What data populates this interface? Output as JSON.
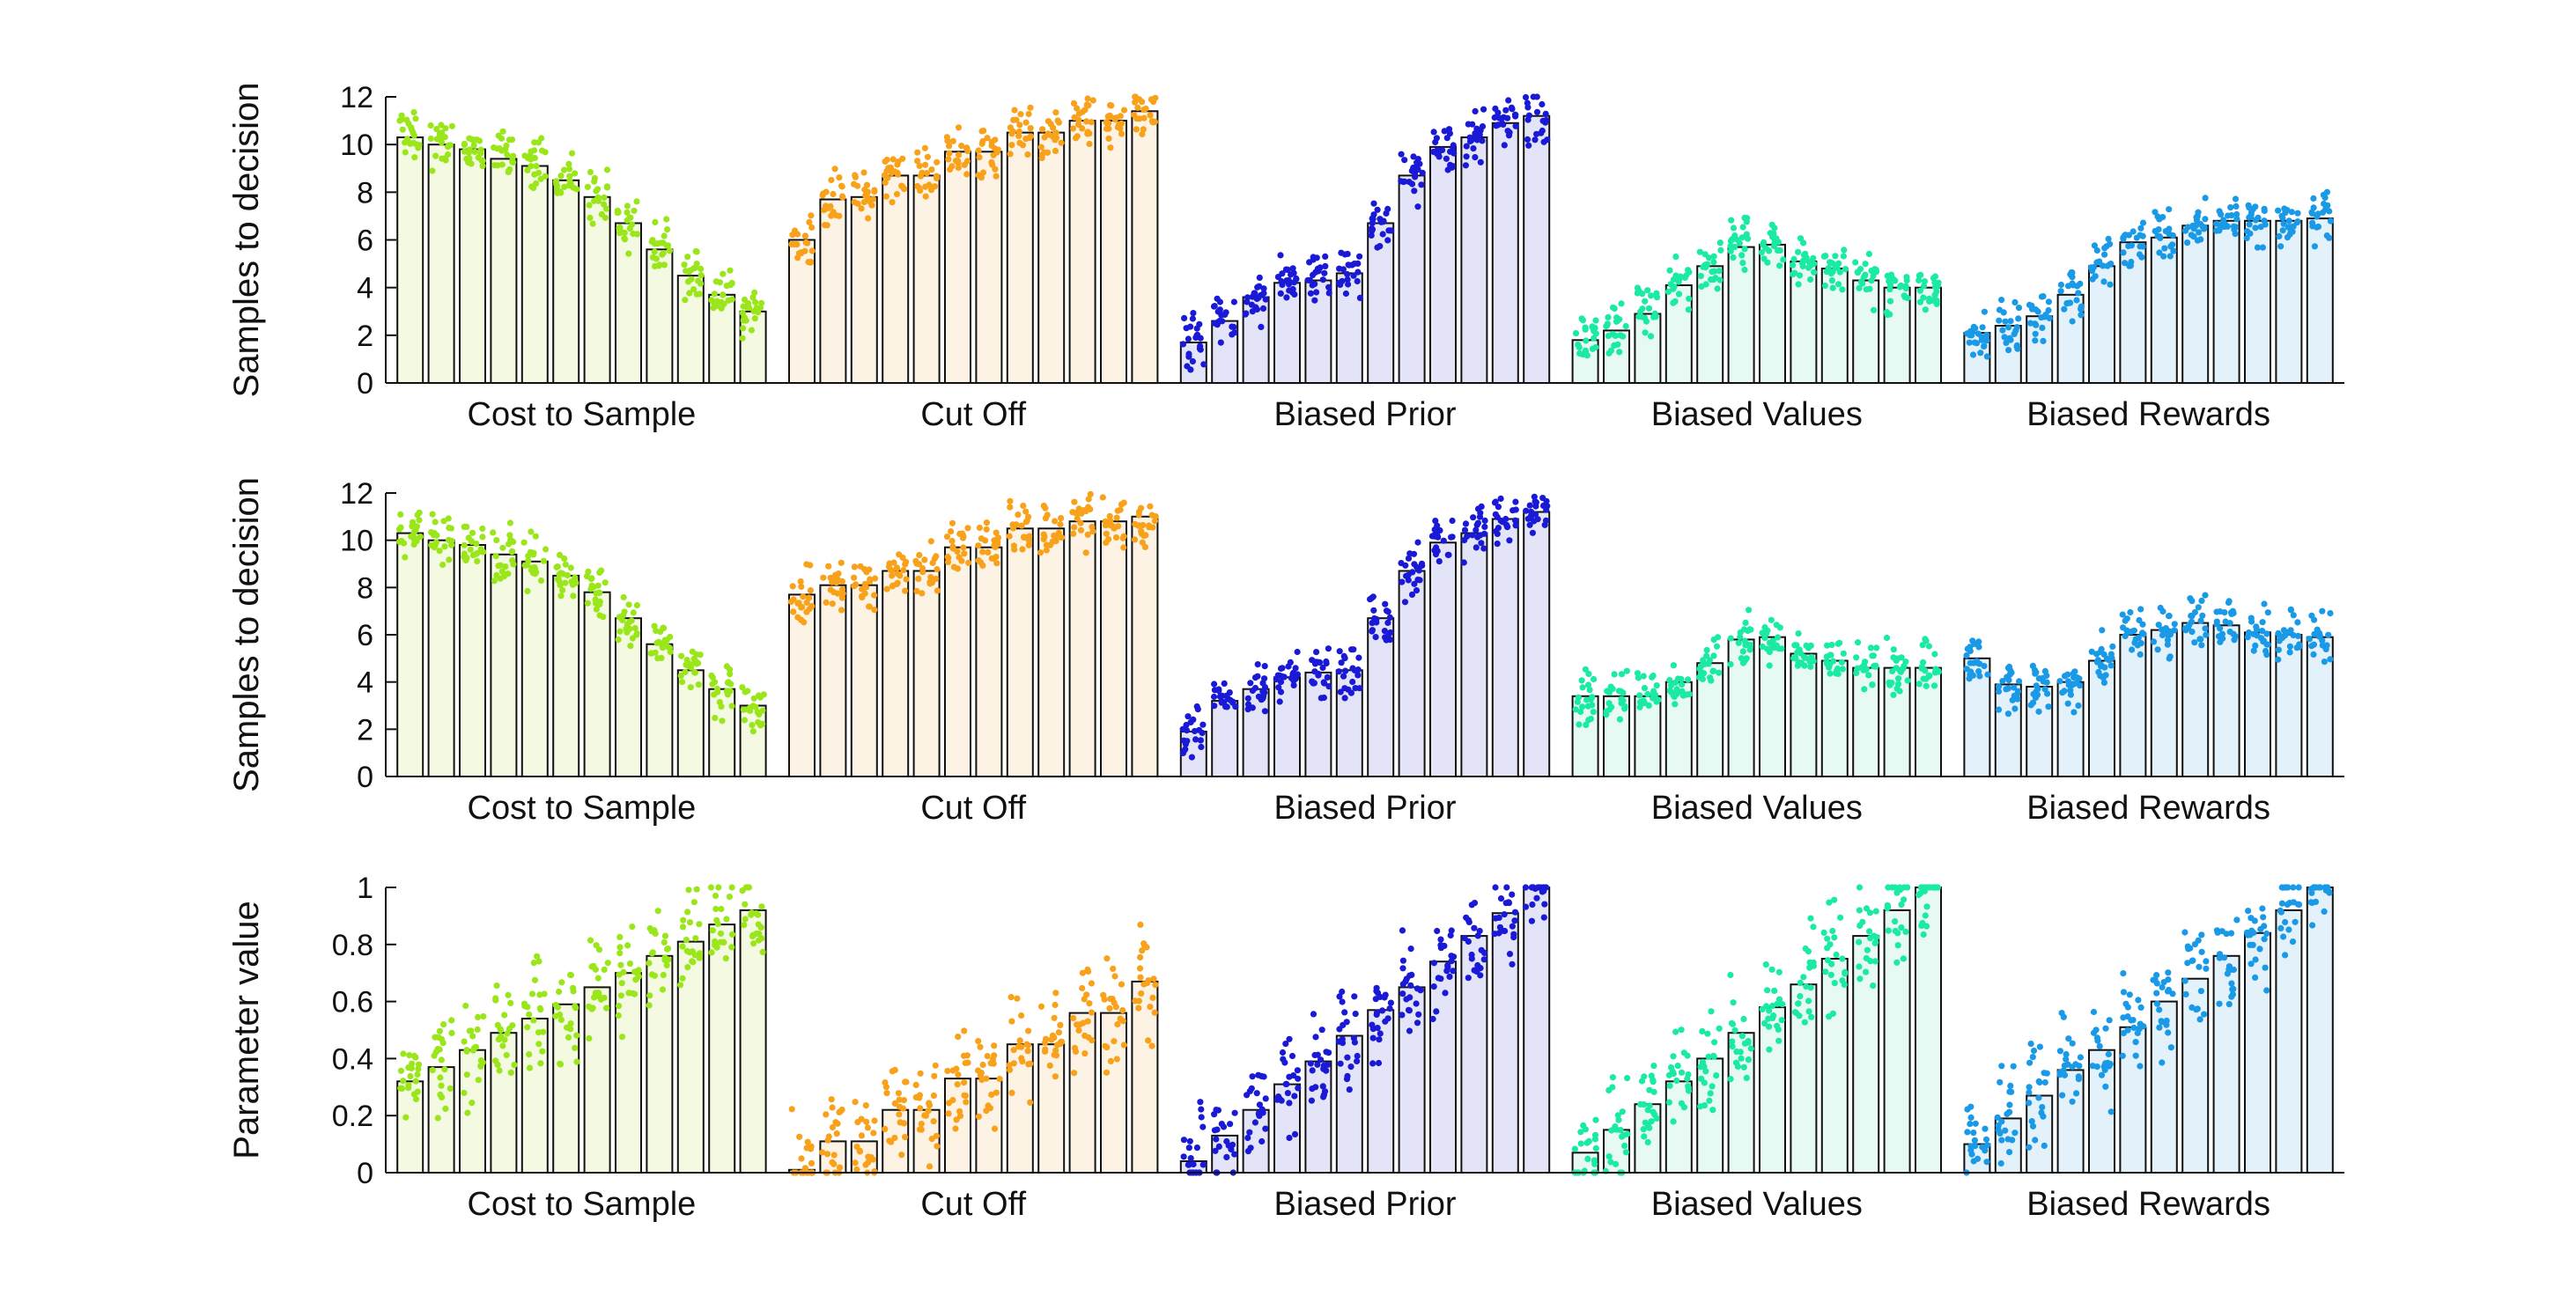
{
  "chart_data": [
    {
      "type": "bar",
      "ylabel": "Samples to decision",
      "ylim": [
        0,
        12
      ],
      "yticks": [
        "0",
        "2",
        "4",
        "6",
        "8",
        "10",
        "12"
      ],
      "groups": [
        {
          "name": "Cost to Sample",
          "color": "#9ae61a",
          "fill": "#f4fae2",
          "values": [
            10.3,
            10.0,
            9.8,
            9.4,
            9.1,
            8.5,
            7.8,
            6.7,
            5.6,
            4.5,
            3.7,
            3.0
          ]
        },
        {
          "name": "Cut Off",
          "color": "#f8a11a",
          "fill": "#fdf3e4",
          "values": [
            6.0,
            7.7,
            7.8,
            8.7,
            8.7,
            9.7,
            9.7,
            10.5,
            10.5,
            11.0,
            11.0,
            11.4
          ]
        },
        {
          "name": "Biased Prior",
          "color": "#1a1ad6",
          "fill": "#e4e4f8",
          "values": [
            1.7,
            2.6,
            3.6,
            4.2,
            4.3,
            4.6,
            6.7,
            8.7,
            9.9,
            10.3,
            10.9,
            11.2
          ]
        },
        {
          "name": "Biased Values",
          "color": "#1aeaa2",
          "fill": "#e6f9f2",
          "values": [
            1.8,
            2.2,
            2.9,
            4.1,
            4.9,
            5.7,
            5.8,
            5.1,
            4.8,
            4.3,
            4.0,
            4.0
          ]
        },
        {
          "name": "Biased Rewards",
          "color": "#1a9ae6",
          "fill": "#e2f1fa",
          "values": [
            2.1,
            2.4,
            2.8,
            3.7,
            4.9,
            5.9,
            6.1,
            6.6,
            6.8,
            6.8,
            6.8,
            6.9
          ]
        }
      ]
    },
    {
      "type": "bar",
      "ylabel": "Samples to decision",
      "ylim": [
        0,
        12
      ],
      "yticks": [
        "0",
        "2",
        "4",
        "6",
        "8",
        "10",
        "12"
      ],
      "groups": [
        {
          "name": "Cost to Sample",
          "color": "#9ae61a",
          "fill": "#f4fae2",
          "values": [
            10.3,
            10.0,
            9.8,
            9.4,
            9.1,
            8.5,
            7.8,
            6.7,
            5.6,
            4.5,
            3.7,
            3.0
          ]
        },
        {
          "name": "Cut Off",
          "color": "#f8a11a",
          "fill": "#fdf3e4",
          "values": [
            7.7,
            8.1,
            8.1,
            8.7,
            8.7,
            9.7,
            9.7,
            10.5,
            10.5,
            10.8,
            10.8,
            11.0
          ]
        },
        {
          "name": "Biased Prior",
          "color": "#1a1ad6",
          "fill": "#e4e4f8",
          "values": [
            1.9,
            3.2,
            3.7,
            4.2,
            4.4,
            4.5,
            6.7,
            8.7,
            9.9,
            10.3,
            10.9,
            11.2
          ]
        },
        {
          "name": "Biased Values",
          "color": "#1aeaa2",
          "fill": "#e6f9f2",
          "values": [
            3.4,
            3.4,
            3.4,
            4.0,
            4.8,
            5.8,
            5.9,
            5.2,
            4.9,
            4.6,
            4.6,
            4.6
          ]
        },
        {
          "name": "Biased Rewards",
          "color": "#1a9ae6",
          "fill": "#e2f1fa",
          "values": [
            5.0,
            3.9,
            3.8,
            4.0,
            4.9,
            6.0,
            6.2,
            6.5,
            6.4,
            6.1,
            6.0,
            5.9
          ]
        }
      ]
    },
    {
      "type": "bar",
      "ylabel": "Parameter value",
      "ylim": [
        0,
        1
      ],
      "yticks": [
        "0",
        "0.2",
        "0.4",
        "0.6",
        "0.8",
        "1"
      ],
      "groups": [
        {
          "name": "Cost to Sample",
          "color": "#9ae61a",
          "fill": "#f4fae2",
          "values": [
            0.32,
            0.37,
            0.43,
            0.49,
            0.54,
            0.59,
            0.65,
            0.7,
            0.76,
            0.81,
            0.87,
            0.92
          ]
        },
        {
          "name": "Cut Off",
          "color": "#f8a11a",
          "fill": "#fdf3e4",
          "values": [
            0.01,
            0.11,
            0.11,
            0.22,
            0.22,
            0.33,
            0.33,
            0.45,
            0.45,
            0.56,
            0.56,
            0.67
          ]
        },
        {
          "name": "Biased Prior",
          "color": "#1a1ad6",
          "fill": "#e4e4f8",
          "values": [
            0.04,
            0.13,
            0.22,
            0.31,
            0.39,
            0.48,
            0.57,
            0.65,
            0.74,
            0.83,
            0.91,
            1.0
          ]
        },
        {
          "name": "Biased Values",
          "color": "#1aeaa2",
          "fill": "#e6f9f2",
          "values": [
            0.07,
            0.15,
            0.24,
            0.32,
            0.4,
            0.49,
            0.58,
            0.66,
            0.75,
            0.83,
            0.92,
            1.0
          ]
        },
        {
          "name": "Biased Rewards",
          "color": "#1a9ae6",
          "fill": "#e2f1fa",
          "values": [
            0.1,
            0.19,
            0.27,
            0.36,
            0.43,
            0.51,
            0.6,
            0.68,
            0.76,
            0.84,
            0.92,
            1.0
          ]
        }
      ]
    }
  ]
}
